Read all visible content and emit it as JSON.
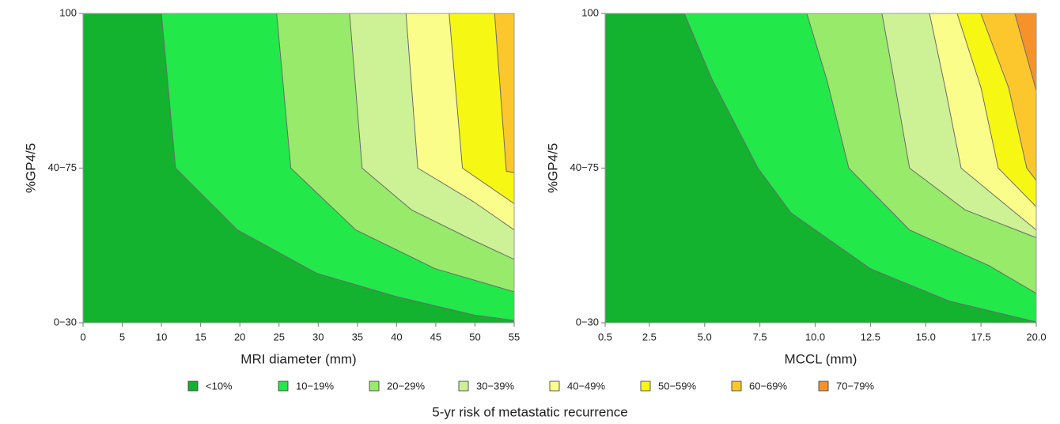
{
  "chart_data": [
    {
      "type": "contour",
      "x_label": "MRI diameter (mm)",
      "y_label": "%GP4/5",
      "xlim": [
        0,
        55
      ],
      "xticks": [
        0,
        5,
        10,
        15,
        20,
        25,
        30,
        35,
        40,
        45,
        50,
        55
      ],
      "ylim": [
        0,
        2
      ],
      "yticks": [
        {
          "value": 0,
          "label": "0−30"
        },
        {
          "value": 1,
          "label": "40−75"
        },
        {
          "value": 2,
          "label": "100"
        }
      ],
      "boundaries": [
        {
          "x": [
            10.0,
            11.8,
            19.7,
            29.8,
            39.9,
            49.9,
            55
          ],
          "y": [
            2,
            1,
            0.6,
            0.32,
            0.17,
            0.05,
            0.015
          ]
        },
        {
          "x": [
            24.7,
            26.5,
            34.8,
            44.9,
            55
          ],
          "y": [
            2,
            1,
            0.6,
            0.35,
            0.2
          ]
        },
        {
          "x": [
            34.0,
            35.6,
            41.9,
            49.9,
            55
          ],
          "y": [
            2,
            1,
            0.73,
            0.53,
            0.41
          ]
        },
        {
          "x": [
            41.2,
            42.7,
            49.9,
            55
          ],
          "y": [
            2,
            1,
            0.78,
            0.6
          ]
        },
        {
          "x": [
            46.7,
            48.4,
            55
          ],
          "y": [
            2,
            1,
            0.77
          ]
        },
        {
          "x": [
            52.5,
            54.0,
            55
          ],
          "y": [
            2,
            0.98,
            0.97
          ]
        }
      ]
    },
    {
      "type": "contour",
      "x_label": "MCCL (mm)",
      "y_label": "%GP4/5",
      "xlim": [
        0.5,
        20.0
      ],
      "xticks": [
        0.5,
        2.5,
        {
          "value": 5,
          "label": "5.0"
        },
        7.5,
        {
          "value": 10,
          "label": "10.0"
        },
        12.5,
        {
          "value": 15,
          "label": "15.0"
        },
        17.5,
        {
          "value": 20,
          "label": "20.0"
        }
      ],
      "ylim": [
        0,
        2
      ],
      "yticks": [
        {
          "value": 0,
          "label": "0−30"
        },
        {
          "value": 1,
          "label": "40−75"
        },
        {
          "value": 2,
          "label": "100"
        }
      ],
      "boundaries": [
        {
          "x": [
            4.08,
            5.33,
            7.41,
            8.91,
            12.49,
            16.06,
            20.0
          ],
          "y": [
            2,
            1.575,
            1,
            0.71,
            0.35,
            0.14,
            0.005
          ]
        },
        {
          "x": [
            9.62,
            10.52,
            11.52,
            14.27,
            17.85,
            20.0
          ],
          "y": [
            2,
            1.575,
            1,
            0.6,
            0.37,
            0.19
          ]
        },
        {
          "x": [
            13.02,
            13.56,
            14.27,
            16.78,
            20.0
          ],
          "y": [
            2,
            1.575,
            1,
            0.73,
            0.55
          ]
        },
        {
          "x": [
            15.17,
            15.88,
            16.6,
            18.21,
            20.0
          ],
          "y": [
            2,
            1.52,
            1,
            0.81,
            0.6
          ]
        },
        {
          "x": [
            16.42,
            17.5,
            18.28,
            20.0
          ],
          "y": [
            2,
            1.52,
            1,
            0.75
          ]
        },
        {
          "x": [
            17.49,
            18.75,
            19.57,
            20.0
          ],
          "y": [
            2,
            1.52,
            1,
            0.92
          ]
        },
        {
          "x": [
            19.03,
            20.0
          ],
          "y": [
            2,
            1.5
          ]
        }
      ]
    }
  ],
  "legend": {
    "title": "5-yr risk of metastatic recurrence",
    "levels": [
      {
        "name": "<10%",
        "color": "#13b22f"
      },
      {
        "name": "10−19%",
        "color": "#22e84a"
      },
      {
        "name": "20−29%",
        "color": "#98ea6a"
      },
      {
        "name": "30−39%",
        "color": "#cdf296"
      },
      {
        "name": "40−49%",
        "color": "#fbfd8a"
      },
      {
        "name": "50−59%",
        "color": "#f7f714"
      },
      {
        "name": "60−69%",
        "color": "#fbc72c"
      },
      {
        "name": "70−79%",
        "color": "#f7922a"
      }
    ]
  }
}
